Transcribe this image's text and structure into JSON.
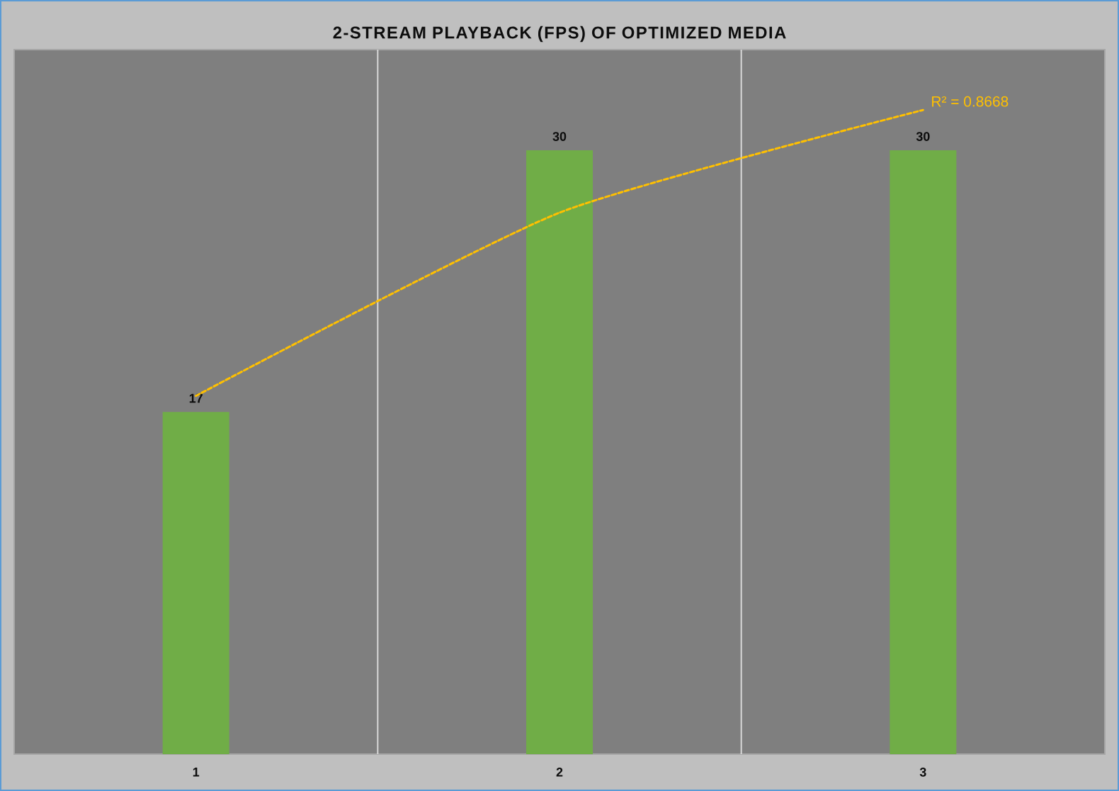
{
  "chart_data": {
    "type": "bar",
    "title": "2-STREAM PLAYBACK (FPS) OF OPTIMIZED MEDIA",
    "categories": [
      "1",
      "2",
      "3"
    ],
    "series": [
      {
        "color": "#70ad47",
        "values": [
          17,
          30,
          30
        ],
        "value_labels": [
          "17",
          "30",
          "30"
        ]
      },
      {
        "type": "line",
        "color": "#ffc000",
        "line_style": "dashed",
        "values": [
          17.8,
          26.9,
          32.0
        ]
      }
    ],
    "ylim": [
      0,
      35
    ],
    "grid": "x",
    "tick_labels": "x",
    "annotations": [
      "R² = 0.8668"
    ]
  }
}
